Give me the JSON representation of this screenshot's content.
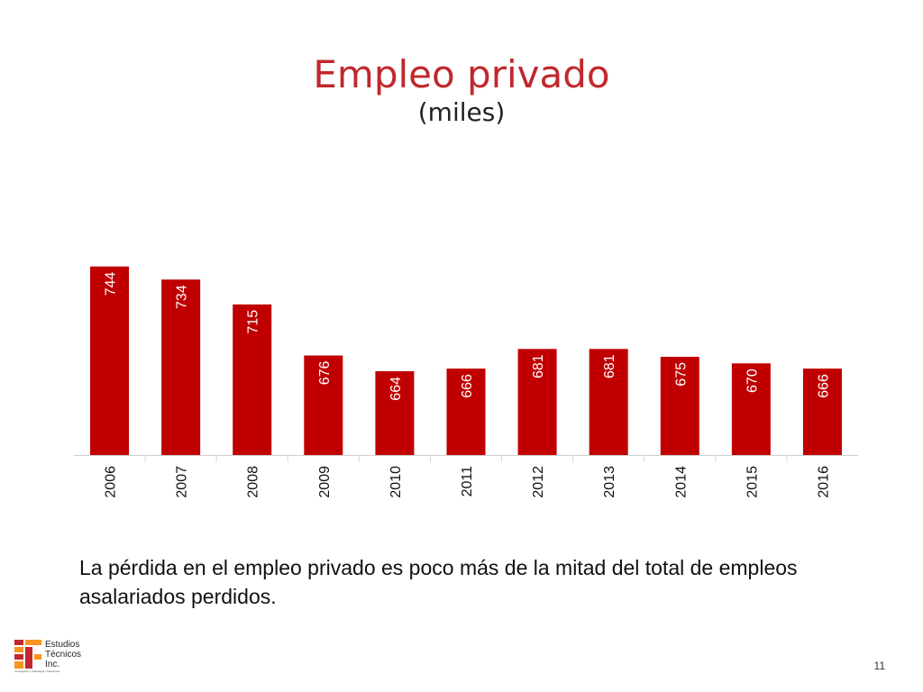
{
  "title": "Empleo privado",
  "subtitle": "(miles)",
  "chart_data": {
    "type": "bar",
    "categories": [
      "2006",
      "2007",
      "2008",
      "2009",
      "2010",
      "2011",
      "2012",
      "2013",
      "2014",
      "2015",
      "2016"
    ],
    "values": [
      744,
      734,
      715,
      676,
      664,
      666,
      681,
      681,
      675,
      670,
      666
    ],
    "data_labels": [
      "744",
      "734",
      "715",
      "676",
      "664",
      "666",
      "681",
      "681",
      "675",
      "670",
      "666"
    ],
    "title": "Empleo privado",
    "subtitle": "(miles)",
    "xlabel": "",
    "ylabel": "",
    "ylim": [
      600,
      750
    ],
    "bar_color": "#c00000",
    "label_color": "#ffffff",
    "grid": false,
    "legend": "none"
  },
  "note": "La pérdida en el empleo privado es poco más de la mitad del total de empleos asalariados perdidos.",
  "logo": {
    "text": "Estudios\nTécnicos\nInc.",
    "tagline": "Investigación | Estrategia | Soluciones",
    "accent_colors": [
      "#c1272d",
      "#f7941d"
    ]
  },
  "page_number": "11"
}
